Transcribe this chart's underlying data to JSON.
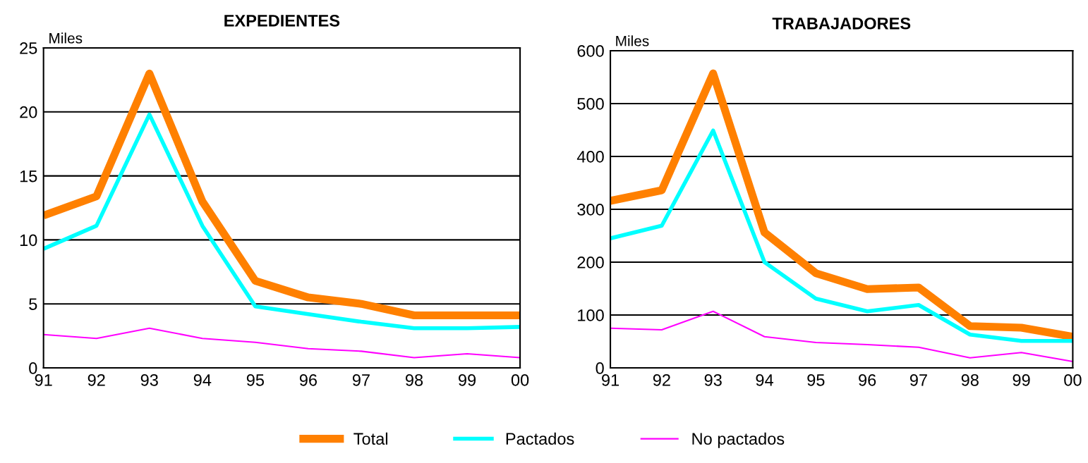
{
  "chart_data": [
    {
      "type": "line",
      "title": "EXPEDIENTES",
      "ylabel": "Miles",
      "categories": [
        "91",
        "92",
        "93",
        "94",
        "95",
        "96",
        "97",
        "98",
        "99",
        "00"
      ],
      "ylim": [
        0,
        25
      ],
      "yticks": [
        0,
        5,
        10,
        15,
        20,
        25
      ],
      "grid": "y",
      "legend": "bottom",
      "series": [
        {
          "name": "Total",
          "color": "#ff8000",
          "values": [
            11.9,
            13.4,
            23.0,
            13.0,
            6.8,
            5.5,
            5.0,
            4.1,
            4.1,
            4.1
          ]
        },
        {
          "name": "Pactados",
          "color": "#00ffff",
          "values": [
            9.3,
            11.1,
            19.8,
            11.1,
            4.8,
            4.2,
            3.6,
            3.1,
            3.1,
            3.2
          ]
        },
        {
          "name": "No pactados",
          "color": "#ff00ff",
          "values": [
            2.6,
            2.3,
            3.1,
            2.3,
            2.0,
            1.5,
            1.3,
            0.8,
            1.1,
            0.8
          ]
        }
      ]
    },
    {
      "type": "line",
      "title": "TRABAJADORES",
      "ylabel": "Miles",
      "categories": [
        "91",
        "92",
        "93",
        "94",
        "95",
        "96",
        "97",
        "98",
        "99",
        "00"
      ],
      "ylim": [
        0,
        600
      ],
      "yticks": [
        0,
        100,
        200,
        300,
        400,
        500,
        600
      ],
      "grid": "y",
      "legend": "bottom",
      "series": [
        {
          "name": "Total",
          "color": "#ff8000",
          "values": [
            316,
            336,
            557,
            256,
            179,
            149,
            152,
            79,
            76,
            59
          ]
        },
        {
          "name": "Pactados",
          "color": "#00ffff",
          "values": [
            245,
            269,
            449,
            200,
            131,
            107,
            119,
            63,
            51,
            51
          ]
        },
        {
          "name": "No pactados",
          "color": "#ff00ff",
          "values": [
            75,
            72,
            107,
            59,
            48,
            44,
            39,
            19,
            29,
            12
          ]
        }
      ]
    }
  ]
}
